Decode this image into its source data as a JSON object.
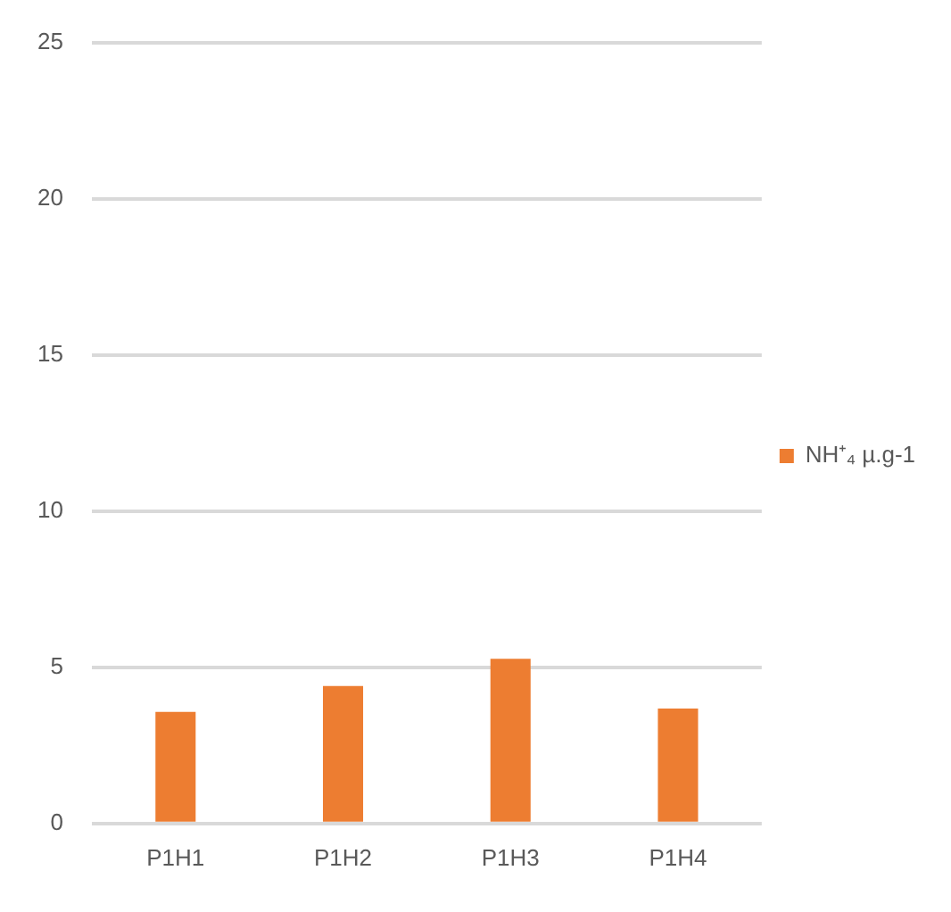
{
  "chart_data": {
    "type": "bar",
    "categories": [
      "P1H1",
      "P1H2",
      "P1H3",
      "P1H4"
    ],
    "series": [
      {
        "name": "NH⁺₄ µ.g-1",
        "color": "#ed7d31",
        "values": [
          3.57,
          4.4,
          5.27,
          3.68
        ]
      }
    ],
    "ylim": [
      0,
      25
    ],
    "yticks": [
      0,
      5,
      10,
      15,
      20,
      25
    ],
    "grid": "y",
    "legend": "right"
  }
}
